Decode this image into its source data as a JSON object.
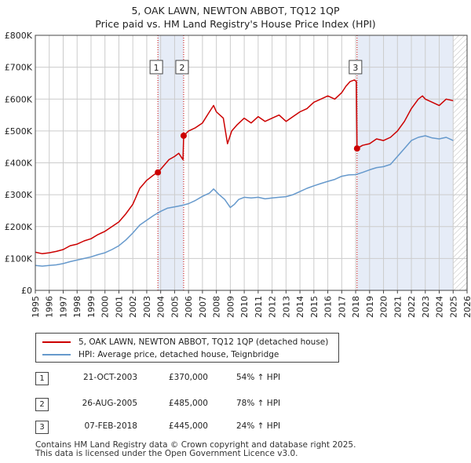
{
  "title_line1": "5, OAK LAWN, NEWTON ABBOT, TQ12 1QP",
  "title_line2": "Price paid vs. HM Land Registry's House Price Index (HPI)",
  "colors": {
    "property": "#cc0000",
    "hpi": "#6699cc",
    "shade": "#e6ecf7",
    "marker_line": "#cc0000"
  },
  "chart_data": {
    "type": "line",
    "title": "5, OAK LAWN, NEWTON ABBOT, TQ12 1QP",
    "subtitle": "Price paid vs. HM Land Registry's House Price Index (HPI)",
    "xlabel": "",
    "ylabel": "",
    "xlim": [
      1995,
      2026
    ],
    "ylim": [
      0,
      800000
    ],
    "y_ticks": [
      0,
      100000,
      200000,
      300000,
      400000,
      500000,
      600000,
      700000,
      800000
    ],
    "y_tick_labels": [
      "£0",
      "£100K",
      "£200K",
      "£300K",
      "£400K",
      "£500K",
      "£600K",
      "£700K",
      "£800K"
    ],
    "x_ticks": [
      "1995",
      "1996",
      "1997",
      "1998",
      "1999",
      "2000",
      "2001",
      "2002",
      "2003",
      "2004",
      "2005",
      "2006",
      "2007",
      "2008",
      "2009",
      "2010",
      "2011",
      "2012",
      "2013",
      "2014",
      "2015",
      "2016",
      "2017",
      "2018",
      "2019",
      "2020",
      "2021",
      "2022",
      "2023",
      "2024",
      "2025",
      "2026"
    ],
    "grid": true,
    "shaded_ranges": [
      [
        2003.8,
        2005.65
      ],
      [
        2018.1,
        2025.0
      ]
    ],
    "hatched_after": 2025.0,
    "series": [
      {
        "name": "5, OAK LAWN, NEWTON ABBOT, TQ12 1QP (detached house)",
        "color": "#cc0000",
        "x": [
          1995.0,
          1995.5,
          1996.0,
          1996.5,
          1997.0,
          1997.5,
          1998.0,
          1998.5,
          1999.0,
          1999.5,
          2000.0,
          2000.5,
          2001.0,
          2001.5,
          2002.0,
          2002.5,
          2003.0,
          2003.5,
          2003.8,
          2004.2,
          2004.6,
          2005.0,
          2005.3,
          2005.6,
          2005.65,
          2006.0,
          2006.5,
          2007.0,
          2007.5,
          2007.8,
          2008.0,
          2008.5,
          2008.8,
          2009.1,
          2009.5,
          2010.0,
          2010.5,
          2011.0,
          2011.5,
          2012.0,
          2012.5,
          2013.0,
          2013.5,
          2014.0,
          2014.5,
          2015.0,
          2015.5,
          2016.0,
          2016.5,
          2017.0,
          2017.3,
          2017.6,
          2017.9,
          2018.05,
          2018.1,
          2018.5,
          2019.0,
          2019.5,
          2020.0,
          2020.5,
          2021.0,
          2021.5,
          2022.0,
          2022.5,
          2022.8,
          2023.0,
          2023.5,
          2024.0,
          2024.5,
          2025.0
        ],
        "values": [
          120000,
          115000,
          118000,
          122000,
          128000,
          140000,
          145000,
          155000,
          162000,
          175000,
          185000,
          200000,
          215000,
          240000,
          270000,
          320000,
          345000,
          362000,
          370000,
          390000,
          410000,
          420000,
          430000,
          410000,
          485000,
          500000,
          510000,
          525000,
          560000,
          580000,
          560000,
          540000,
          460000,
          500000,
          520000,
          540000,
          525000,
          545000,
          530000,
          540000,
          550000,
          530000,
          545000,
          560000,
          570000,
          590000,
          600000,
          610000,
          600000,
          620000,
          640000,
          655000,
          660000,
          655000,
          445000,
          455000,
          460000,
          475000,
          470000,
          480000,
          500000,
          530000,
          570000,
          600000,
          610000,
          600000,
          590000,
          580000,
          600000,
          595000
        ]
      },
      {
        "name": "HPI: Average price, detached house, Teignbridge",
        "color": "#6699cc",
        "x": [
          1995.0,
          1995.5,
          1996.0,
          1996.5,
          1997.0,
          1997.5,
          1998.0,
          1998.5,
          1999.0,
          1999.5,
          2000.0,
          2000.5,
          2001.0,
          2001.5,
          2002.0,
          2002.5,
          2003.0,
          2003.5,
          2004.0,
          2004.5,
          2005.0,
          2005.5,
          2006.0,
          2006.5,
          2007.0,
          2007.5,
          2007.8,
          2008.2,
          2008.6,
          2009.0,
          2009.3,
          2009.6,
          2010.0,
          2010.5,
          2011.0,
          2011.5,
          2012.0,
          2012.5,
          2013.0,
          2013.5,
          2014.0,
          2014.5,
          2015.0,
          2015.5,
          2016.0,
          2016.5,
          2017.0,
          2017.5,
          2018.0,
          2018.5,
          2019.0,
          2019.5,
          2020.0,
          2020.5,
          2021.0,
          2021.5,
          2022.0,
          2022.5,
          2023.0,
          2023.5,
          2024.0,
          2024.5,
          2025.0
        ],
        "values": [
          78000,
          76000,
          78000,
          80000,
          84000,
          90000,
          95000,
          100000,
          105000,
          112000,
          118000,
          128000,
          140000,
          158000,
          180000,
          205000,
          220000,
          235000,
          248000,
          258000,
          262000,
          266000,
          272000,
          282000,
          295000,
          305000,
          318000,
          300000,
          285000,
          260000,
          270000,
          285000,
          292000,
          290000,
          292000,
          287000,
          290000,
          292000,
          294000,
          300000,
          310000,
          320000,
          328000,
          335000,
          342000,
          348000,
          358000,
          362000,
          363000,
          370000,
          378000,
          385000,
          388000,
          395000,
          420000,
          445000,
          470000,
          480000,
          485000,
          478000,
          475000,
          480000,
          470000
        ]
      }
    ],
    "sale_markers": [
      {
        "label": "1",
        "x": 2003.8,
        "value": 370000
      },
      {
        "label": "2",
        "x": 2005.65,
        "value": 485000
      },
      {
        "label": "3",
        "x": 2018.1,
        "value": 445000
      }
    ],
    "legend": {
      "property_label": "5, OAK LAWN, NEWTON ABBOT, TQ12 1QP (detached house)",
      "hpi_label": "HPI: Average price, detached house, Teignbridge"
    }
  },
  "sales": [
    {
      "num": "1",
      "date": "21-OCT-2003",
      "price": "£370,000",
      "hpi": "54% ↑ HPI"
    },
    {
      "num": "2",
      "date": "26-AUG-2005",
      "price": "£485,000",
      "hpi": "78% ↑ HPI"
    },
    {
      "num": "3",
      "date": "07-FEB-2018",
      "price": "£445,000",
      "hpi": "24% ↑ HPI"
    }
  ],
  "footer_line1": "Contains HM Land Registry data © Crown copyright and database right 2025.",
  "footer_line2": "This data is licensed under the Open Government Licence v3.0."
}
